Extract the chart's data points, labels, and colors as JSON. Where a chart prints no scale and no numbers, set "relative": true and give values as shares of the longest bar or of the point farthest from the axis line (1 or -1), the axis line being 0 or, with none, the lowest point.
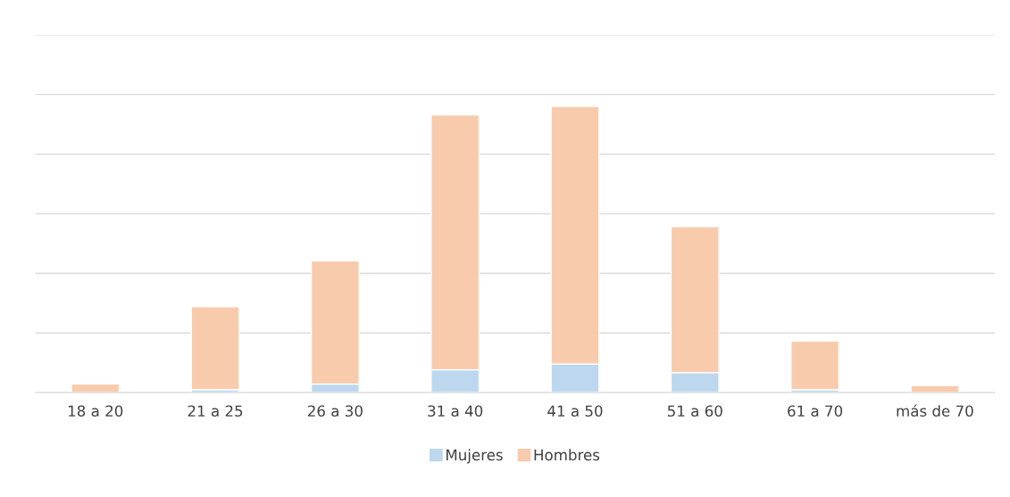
{
  "chart_data": {
    "type": "bar",
    "stacked": true,
    "relative": true,
    "grid": "y",
    "legend": "bottom",
    "categories": [
      "18 a 20",
      "21 a 25",
      "26 a 30",
      "31 a 40",
      "41 a 50",
      "51 a 60",
      "61 a 70",
      "más de 70"
    ],
    "series": [
      {
        "name": "Mujeres",
        "color": "#bdd7ee",
        "values": [
          0,
          0.01,
          0.03,
          0.08,
          0.1,
          0.07,
          0.01,
          0
        ]
      },
      {
        "name": "Hombres",
        "color": "#f8cbad",
        "values": [
          0.03,
          0.29,
          0.43,
          0.89,
          0.9,
          0.51,
          0.17,
          0.025
        ]
      }
    ]
  }
}
